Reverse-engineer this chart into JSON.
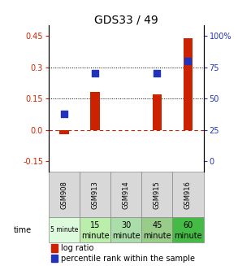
{
  "title": "GDS33 / 49",
  "samples": [
    "GSM908",
    "GSM913",
    "GSM914",
    "GSM915",
    "GSM916"
  ],
  "time_labels_line1": [
    "5 minute",
    "15",
    "30",
    "45",
    "60"
  ],
  "time_labels_line2": [
    "",
    "minute",
    "minute",
    "minute",
    "minute"
  ],
  "time_colors": [
    "#ddfadd",
    "#bbeeaa",
    "#aaddaa",
    "#99cc88",
    "#44bb44"
  ],
  "log_ratios": [
    -0.02,
    0.18,
    0.0,
    0.17,
    0.44
  ],
  "percentile_ranks": [
    37.5,
    70.0,
    null,
    70.0,
    80.0
  ],
  "left_ylim": [
    -0.2,
    0.5
  ],
  "left_yticks": [
    -0.15,
    0.0,
    0.15,
    0.3,
    0.45
  ],
  "right_yticks": [
    0,
    25,
    50,
    75,
    100
  ],
  "bar_color": "#cc2200",
  "dot_color": "#2233bb",
  "hline_y": 0.0,
  "dotted_lines": [
    0.15,
    0.3
  ],
  "bar_width": 0.3,
  "dot_size": 40,
  "title_fontsize": 10,
  "tick_fontsize": 7,
  "legend_fontsize": 7,
  "sample_bg_color": "#d8d8d8",
  "sample_border_color": "#888888"
}
